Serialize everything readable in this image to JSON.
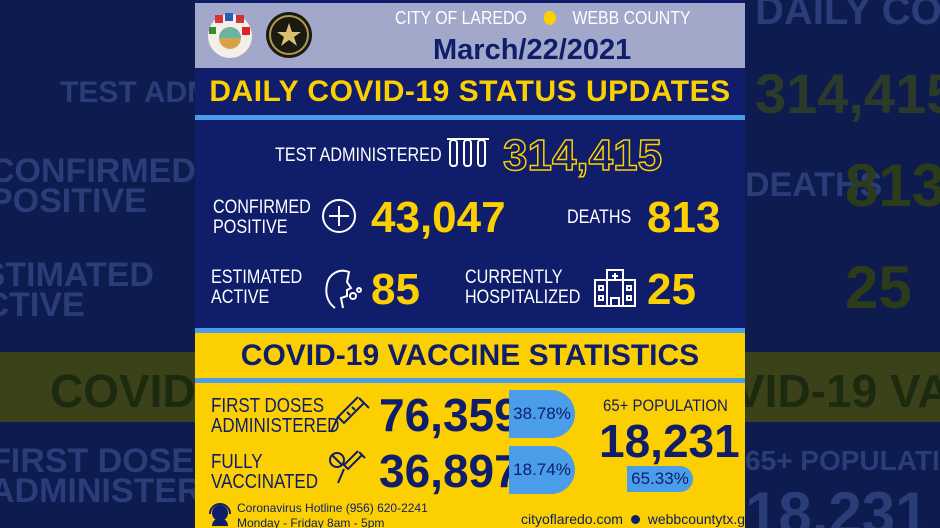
{
  "header": {
    "city": "CITY OF LAREDO",
    "county": "WEBB COUNTY",
    "date": "March/22/2021",
    "title": "DAILY COVID-19 STATUS UPDATES"
  },
  "stats": {
    "tests": {
      "label": "TEST ADMINISTERED",
      "value": "314,415",
      "icon": "test-tubes-icon"
    },
    "confirmed": {
      "label1": "CONFIRMED",
      "label2": "POSITIVE",
      "value": "43,047",
      "icon": "plus-circle-icon"
    },
    "deaths": {
      "label": "DEATHS",
      "value": "813"
    },
    "active": {
      "label1": "ESTIMATED",
      "label2": "ACTIVE",
      "value": "85",
      "icon": "sick-person-icon"
    },
    "hospitalized": {
      "label1": "CURRENTLY",
      "label2": "HOSPITALIZED",
      "value": "25",
      "icon": "hospital-icon"
    }
  },
  "vaccine": {
    "title": "COVID-19 VACCINE STATISTICS",
    "first": {
      "label1": "FIRST DOSES",
      "label2": "ADMINISTERED",
      "value": "76,359",
      "percent": "38.78%",
      "icon": "syringe-icon"
    },
    "full": {
      "label1": "FULLY",
      "label2": "VACCINATED",
      "value": "36,897",
      "percent": "18.74%",
      "icon": "syringe-virus-icon"
    },
    "senior": {
      "label": "65+ POPULATION",
      "value": "18,231",
      "percent": "65.33%"
    }
  },
  "footer": {
    "hotline": "Coronavirus Hotline (956) 620-2241",
    "hours": "Monday - Friday 8am - 5pm",
    "site1": "cityoflaredo.com",
    "site2": "webbcountytx.gov"
  },
  "colors": {
    "navy": "#0f1d6b",
    "yellow": "#fcd000",
    "blue": "#4a9de8",
    "lavender": "#a2a8ca"
  }
}
